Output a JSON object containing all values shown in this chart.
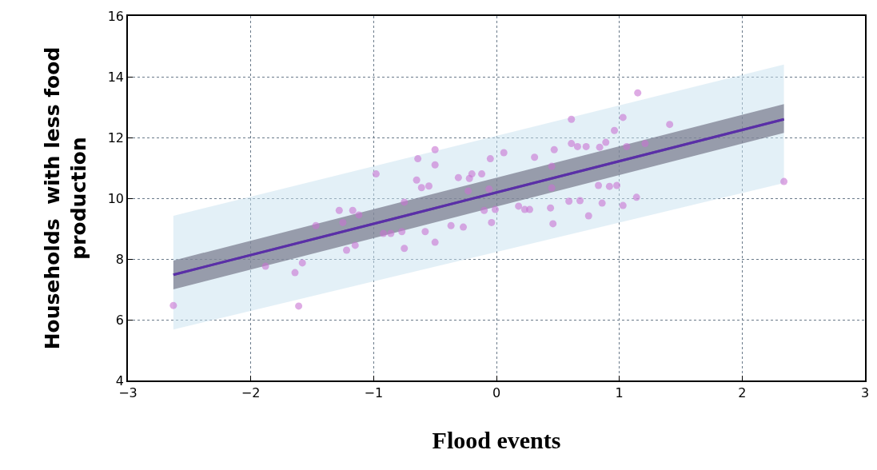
{
  "chart_data": {
    "type": "scatter",
    "xlabel": "Flood events",
    "ylabel": "Households  with less food\nproduction",
    "xlim": [
      -3,
      3
    ],
    "ylim": [
      4,
      16
    ],
    "xticks": [
      -3,
      -2,
      -1,
      0,
      1,
      2,
      3
    ],
    "yticks": [
      4,
      6,
      8,
      10,
      12,
      14,
      16
    ],
    "grid": true,
    "marker": "circle",
    "series": [
      {
        "type": "line",
        "marker": "none",
        "color": "#5a2fa8",
        "x": [
          -2.63,
          2.34
        ],
        "values": [
          7.48,
          12.6
        ],
        "lower": [
          5.68,
          10.5
        ],
        "upper": [
          9.42,
          14.4
        ]
      },
      {
        "color": "#c873d2",
        "x": [
          -2.63,
          -1.61,
          -1.64,
          -1.58,
          -1.88,
          -1.22,
          -1.15,
          -1.47,
          -1.28,
          -1.17,
          -1.12,
          -1.25,
          -0.98,
          -0.64,
          -0.5,
          -0.5,
          -0.65,
          -0.61,
          -0.55,
          -0.75,
          -0.92,
          -0.86,
          -0.77,
          -0.75,
          -0.58,
          -0.5,
          -0.37,
          -0.27,
          -0.31,
          -0.22,
          -0.2,
          -0.12,
          -0.23,
          -0.05,
          0.06,
          -0.1,
          -0.01,
          -0.04,
          -0.06,
          0.18,
          0.27,
          0.23,
          0.31,
          0.45,
          0.44,
          0.46,
          0.45,
          0.47,
          0.61,
          0.61,
          0.66,
          0.73,
          0.59,
          0.68,
          0.75,
          0.83,
          0.84,
          0.89,
          0.86,
          0.92,
          0.98,
          0.96,
          1.03,
          1.03,
          1.15,
          1.41,
          1.06,
          1.21,
          1.14,
          2.34
        ],
        "values": [
          6.47,
          6.45,
          7.55,
          7.87,
          7.76,
          8.29,
          8.45,
          9.1,
          9.6,
          9.6,
          9.45,
          9.2,
          10.8,
          11.3,
          11.6,
          11.1,
          10.6,
          10.35,
          10.4,
          9.87,
          8.84,
          8.84,
          8.9,
          8.35,
          8.9,
          8.55,
          9.1,
          9.05,
          10.68,
          10.65,
          10.8,
          10.8,
          10.24,
          11.3,
          11.5,
          9.6,
          9.63,
          9.2,
          10.3,
          9.74,
          9.63,
          9.63,
          11.35,
          10.34,
          9.68,
          9.16,
          11.05,
          11.6,
          12.6,
          11.8,
          11.7,
          11.7,
          9.9,
          9.92,
          9.42,
          10.42,
          11.68,
          11.84,
          9.84,
          10.39,
          10.42,
          12.23,
          12.66,
          9.76,
          13.47,
          12.43,
          11.7,
          11.8,
          10.03,
          10.55
        ]
      },
      {
        "type": "line",
        "marker": "none",
        "color": "#5a2fa8",
        "x": [
          -2.63,
          2.34
        ],
        "values": [
          7.48,
          12.6
        ],
        "lower": [
          7.0,
          12.15
        ],
        "upper": [
          7.95,
          13.1
        ]
      }
    ]
  }
}
